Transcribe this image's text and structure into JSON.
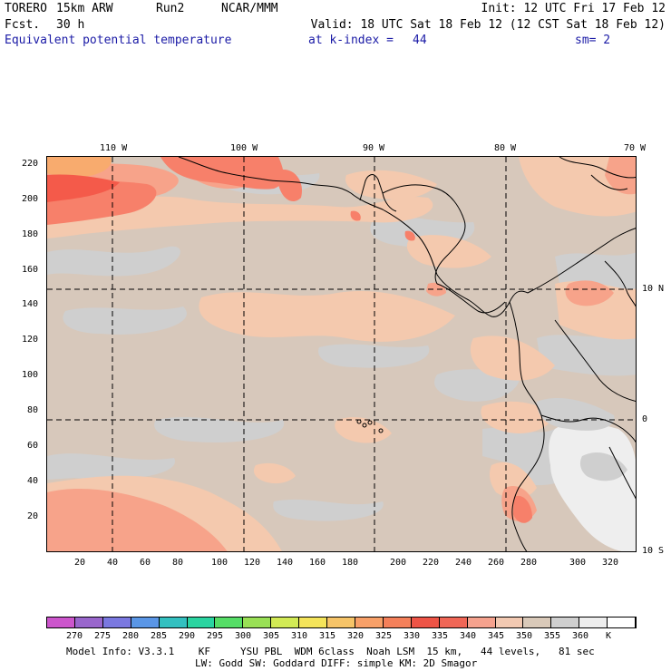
{
  "header": {
    "model": "TORERO",
    "resolution": "15km ARW",
    "run": "Run2",
    "org": "NCAR/MMM",
    "init": "Init: 12 UTC Fri 17 Feb 12",
    "fcst_label": "Fcst.",
    "fcst_hours": "30 h",
    "valid": "Valid: 18 UTC Sat 18 Feb 12 (12 CST Sat 18 Feb 12)",
    "field": "Equivalent potential temperature",
    "level": "at k-index =",
    "k_index": "44",
    "smoothing": "sm= 2"
  },
  "map": {
    "lon_labels": [
      "110 W",
      "100 W",
      "90 W",
      "80 W",
      "70 W"
    ],
    "lat_labels": [
      "10 N",
      "0",
      "10 S"
    ],
    "y_ticks": [
      "220",
      "200",
      "180",
      "160",
      "140",
      "120",
      "100",
      "80",
      "60",
      "40",
      "20"
    ],
    "x_ticks": [
      "20",
      "40",
      "60",
      "80",
      "100",
      "120",
      "140",
      "160",
      "180",
      "200",
      "220",
      "240",
      "260",
      "280",
      "300",
      "320"
    ],
    "colors": {
      "background_345": "#d7c8bb",
      "band_350": "#cfcfcf",
      "band_340": "#f4c9ae",
      "band_335": "#f7a38a",
      "band_330": "#f7806a",
      "band_325": "#f45a4a",
      "band_320": "#f8ab6e",
      "band_355": "#eeeeee",
      "coast": "#000000",
      "grid": "#000000"
    }
  },
  "colorbar": {
    "colors": [
      "#cc55cc",
      "#9966cc",
      "#7a78e0",
      "#5a96e6",
      "#33c0c0",
      "#2ad4a0",
      "#55dd66",
      "#99e055",
      "#d2ea55",
      "#f4e45a",
      "#f6c468",
      "#f8a068",
      "#f4805a",
      "#ee5446",
      "#f06656",
      "#f5a28e",
      "#f2c9b2",
      "#d9c9b9",
      "#cfcfcf",
      "#eeeeee",
      "#ffffff"
    ],
    "labels": [
      "270",
      "275",
      "280",
      "285",
      "290",
      "295",
      "300",
      "305",
      "310",
      "315",
      "320",
      "325",
      "330",
      "335",
      "340",
      "345",
      "350",
      "355",
      "360",
      "K"
    ]
  },
  "footer": {
    "line1": "Model Info: V3.3.1    KF     YSU PBL  WDM 6class  Noah LSM  15 km,   44 levels,   81 sec",
    "line2": "LW: Godd SW: Goddard DIFF: simple KM: 2D Smagor"
  }
}
